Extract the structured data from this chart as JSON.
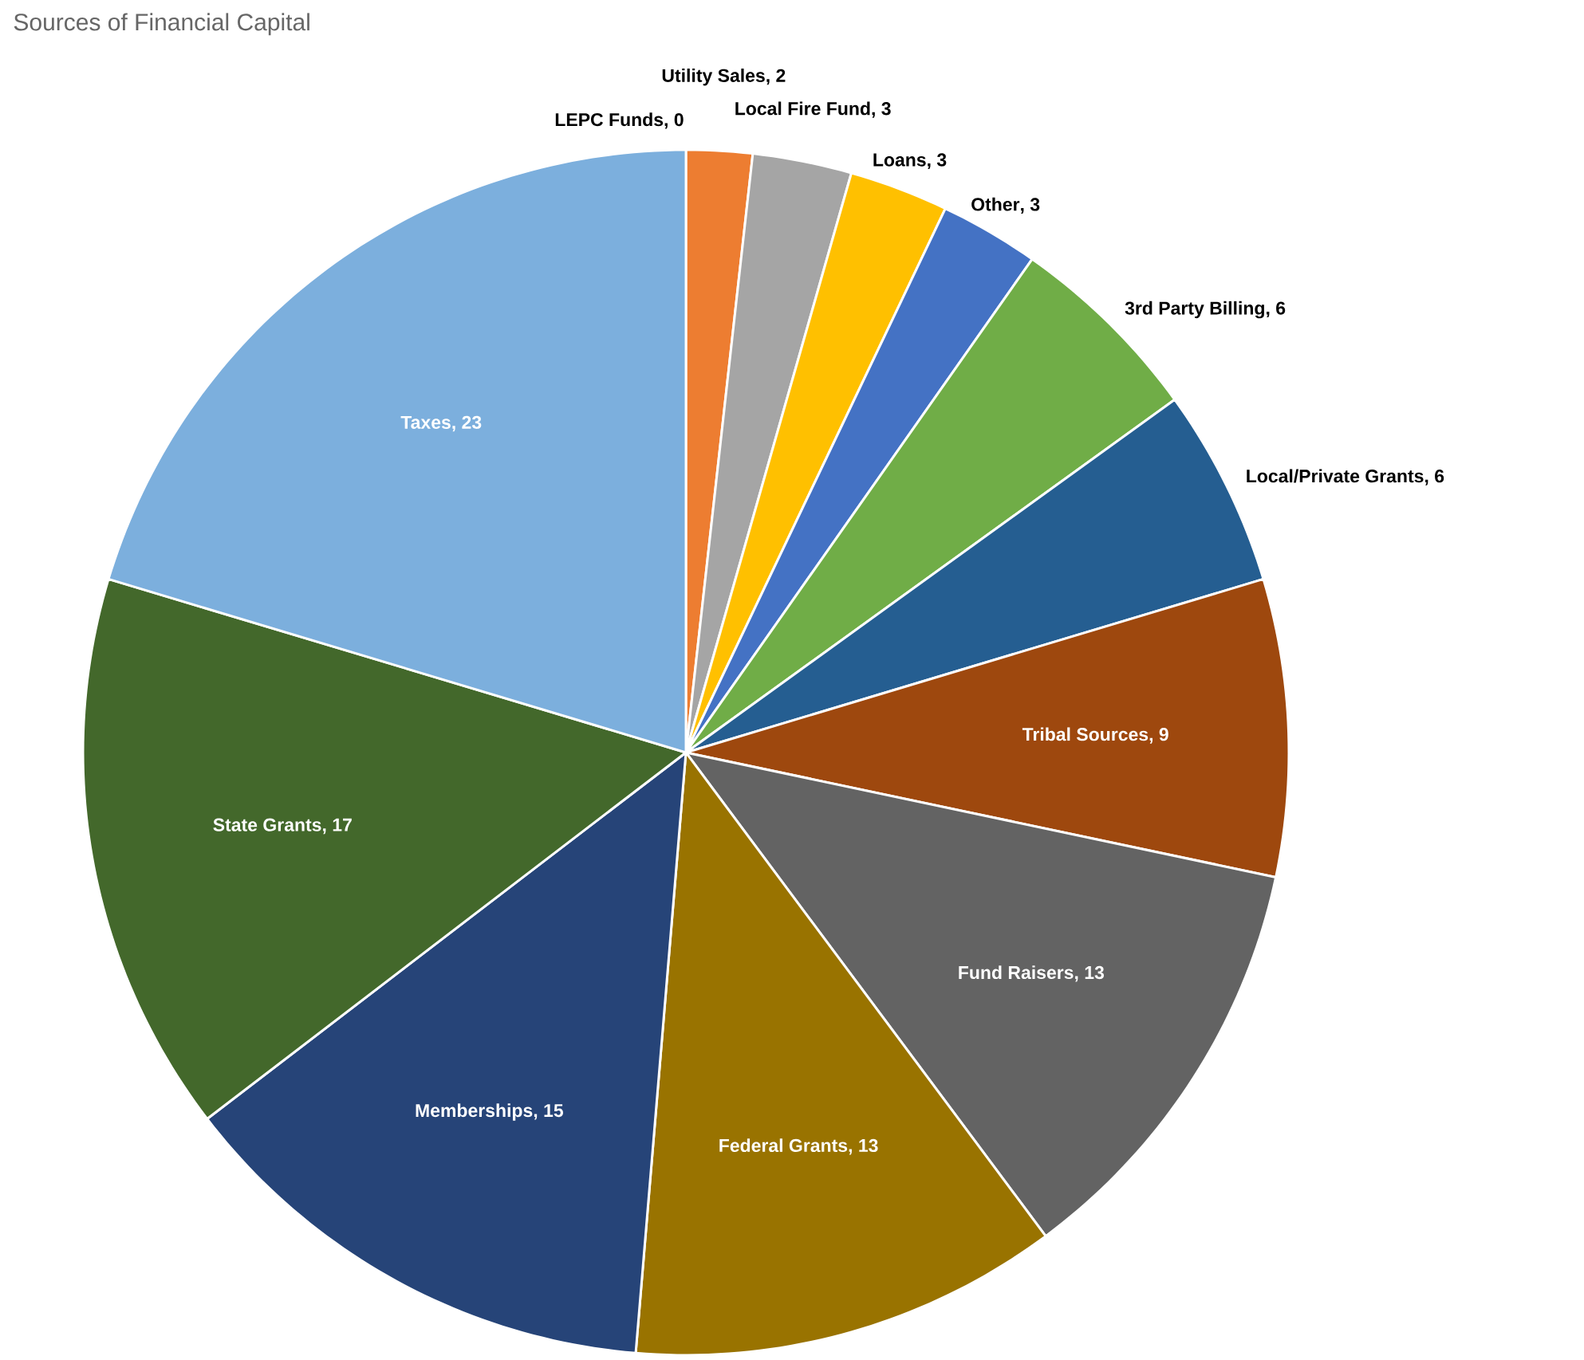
{
  "chart_data": {
    "type": "pie",
    "title": "Sources of Financial Capital",
    "categories": [
      "LEPC Funds",
      "Utility Sales",
      "Local Fire Fund",
      "Loans",
      "Other",
      "3rd Party Billing",
      "Local/Private Grants",
      "Tribal Sources",
      "Fund Raisers",
      "Federal Grants",
      "Memberships",
      "State Grants",
      "Taxes"
    ],
    "values": [
      0,
      2,
      3,
      3,
      3,
      6,
      6,
      9,
      13,
      13,
      15,
      17,
      23
    ],
    "colors": [
      "#5b9bd5",
      "#ed7d31",
      "#a5a5a5",
      "#ffc000",
      "#4472c4",
      "#70ad47",
      "#255e91",
      "#9e480e",
      "#636363",
      "#997300",
      "#264478",
      "#43682b",
      "#7cafdd"
    ],
    "value_labels": [
      ", 0",
      ", 2",
      ", 3",
      ", 3",
      ", 3",
      ", 6",
      ", 6",
      ", 9",
      ", 13",
      ", 13",
      ", 15",
      ", 17",
      ", 23"
    ]
  }
}
